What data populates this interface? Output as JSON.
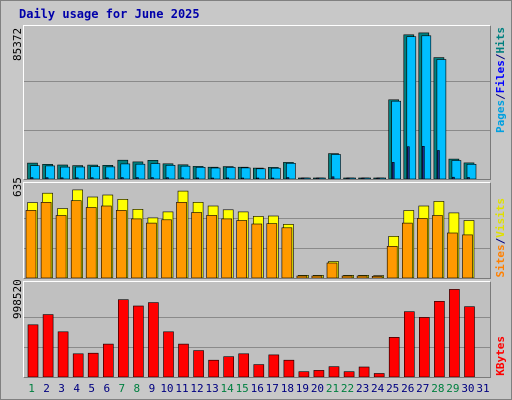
{
  "title": "Daily usage for June 2025",
  "chart_data": {
    "type": "bar",
    "title": "Daily usage for June 2025",
    "categories": [
      "1",
      "2",
      "3",
      "4",
      "5",
      "6",
      "7",
      "8",
      "9",
      "10",
      "11",
      "12",
      "13",
      "14",
      "15",
      "16",
      "17",
      "18",
      "19",
      "20",
      "21",
      "22",
      "23",
      "24",
      "25",
      "26",
      "27",
      "28",
      "29",
      "30",
      "31"
    ],
    "weekend_days": [
      "1",
      "7",
      "8",
      "14",
      "15",
      "21",
      "22",
      "28",
      "29"
    ],
    "panels": [
      {
        "id": "pages-files-hits",
        "ymax_label": "85372",
        "legend": [
          "Pages",
          "/",
          "Files",
          "/",
          "Hits"
        ],
        "legend_colors": [
          "#00a0e0",
          "#000080",
          "#0000ff",
          "#000080",
          "#008080"
        ],
        "series": [
          {
            "name": "Hits",
            "color": "#007f7f",
            "values": [
              16800,
              15500,
              14800,
              14100,
              14700,
              14400,
              19800,
              18000,
              19700,
              16000,
              15000,
              13300,
              12400,
              13100,
              12400,
              11500,
              12200,
              17500,
              1100,
              1100,
              26800,
              900,
              900,
              1000,
              83500,
              152000,
              154000,
              128000,
              21000,
              17000,
              0
            ]
          },
          {
            "name": "Files",
            "color": "#00bfff",
            "values": [
              14000,
              13800,
              12500,
              12600,
              13100,
              12800,
              15900,
              15600,
              16200,
              14400,
              13500,
              12300,
              11600,
              12200,
              11700,
              10800,
              11400,
              16500,
              800,
              900,
              25800,
              700,
              700,
              800,
              82000,
              150000,
              151000,
              126000,
              19500,
              15500,
              0
            ]
          },
          {
            "name": "Pages",
            "color": "#1a2e8c",
            "values": [
              1500,
              1400,
              1300,
              1300,
              1400,
              1300,
              1500,
              1500,
              1500,
              1400,
              1300,
              1200,
              1100,
              1200,
              1100,
              1000,
              1100,
              1500,
              100,
              100,
              2300,
              100,
              100,
              100,
              17500,
              34000,
              34500,
              30000,
              1900,
              1600,
              0
            ]
          }
        ]
      },
      {
        "id": "visits-sites",
        "ymax_label": "635",
        "legend": [
          "Sites",
          "/",
          "Visits"
        ],
        "legend_colors": [
          "#ff8000",
          "#000080",
          "#e0e000"
        ],
        "series": [
          {
            "name": "Visits",
            "color": "#ffff00",
            "values": [
              497,
              559,
              458,
              581,
              534,
              547,
              519,
              453,
              396,
              436,
              573,
              499,
              475,
              450,
              436,
              406,
              409,
              354,
              18,
              18,
              109,
              18,
              18,
              16,
              275,
              445,
              475,
              505,
              429,
              379,
              0
            ]
          },
          {
            "name": "Sites",
            "color": "#ff9900",
            "values": [
              446,
              499,
              412,
              510,
              465,
              475,
              446,
              390,
              362,
              384,
              499,
              432,
              413,
              390,
              379,
              356,
              359,
              331,
              13,
              13,
              99,
              13,
              13,
              11,
              209,
              362,
              393,
              412,
              297,
              284,
              0
            ]
          }
        ]
      },
      {
        "id": "kbytes",
        "ymax_label": "998520",
        "legend": [
          "KBytes"
        ],
        "legend_colors": [
          "#ff0000"
        ],
        "series": [
          {
            "name": "KBytes",
            "color": "#ff0000",
            "values": [
              574000,
              686000,
              497000,
              255000,
              262000,
              361000,
              850000,
              780000,
              818000,
              497000,
              361000,
              290000,
              185000,
              223000,
              255000,
              136000,
              243000,
              185000,
              58000,
              73000,
              113000,
              58000,
              110000,
              38000,
              436000,
              718000,
              655000,
              832000,
              963000,
              772000,
              0
            ]
          }
        ]
      }
    ]
  }
}
